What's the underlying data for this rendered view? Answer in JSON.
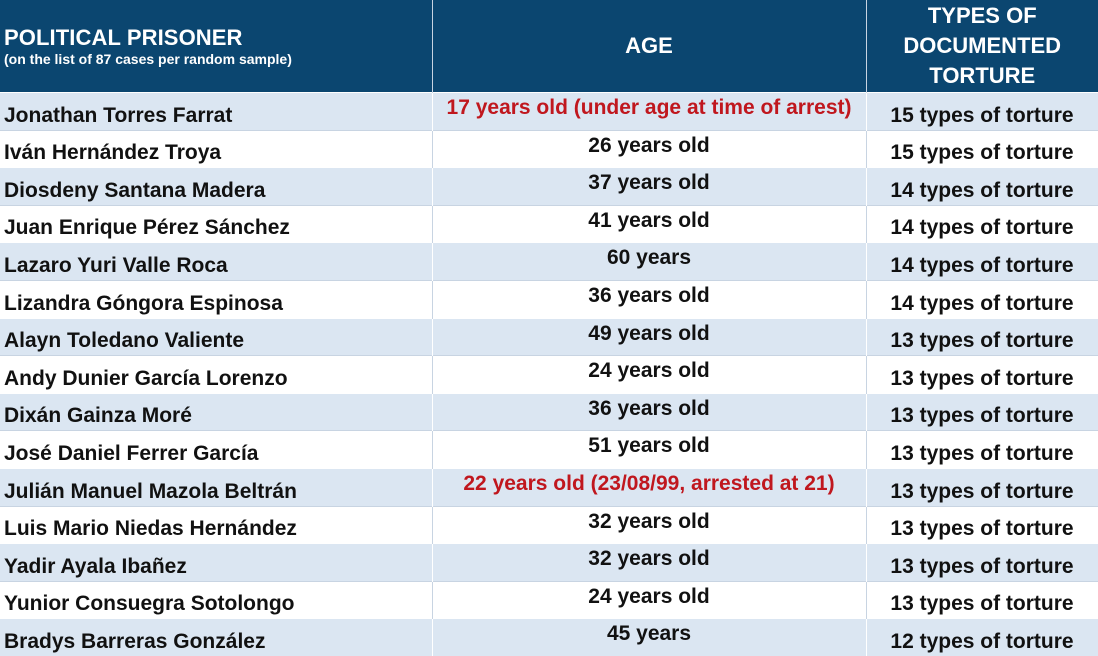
{
  "header": {
    "col1_title": "POLITICAL PRISONER",
    "col1_subtitle": "(on the list of 87 cases per random sample)",
    "col2_title": "AGE",
    "col3_line1": "TYPES OF",
    "col3_line2": "DOCUMENTED",
    "col3_line3": "TORTURE"
  },
  "highlight_color": "#c0171e",
  "header_color": "#0b4670",
  "rows": [
    {
      "name": "Jonathan Torres Farrat",
      "age": "17 years old (under age at time of arrest)",
      "types": "15 types of torture",
      "highlight": true
    },
    {
      "name": "Iván Hernández Troya",
      "age": "26 years old",
      "types": "15 types of torture",
      "highlight": false
    },
    {
      "name": "Diosdeny Santana Madera",
      "age": "37 years old",
      "types": "14 types of torture",
      "highlight": false
    },
    {
      "name": "Juan Enrique Pérez Sánchez",
      "age": "41 years old",
      "types": "14 types of torture",
      "highlight": false
    },
    {
      "name": "Lazaro Yuri Valle Roca",
      "age": "60 years",
      "types": "14 types of torture",
      "highlight": false
    },
    {
      "name": "Lizandra Góngora Espinosa",
      "age": "36 years old",
      "types": "14 types of torture",
      "highlight": false
    },
    {
      "name": "Alayn Toledano Valiente",
      "age": "49 years old",
      "types": "13 types of torture",
      "highlight": false
    },
    {
      "name": "Andy Dunier García Lorenzo",
      "age": "24 years old",
      "types": "13 types of torture",
      "highlight": false
    },
    {
      "name": "Dixán Gainza Moré",
      "age": "36 years old",
      "types": "13 types of torture",
      "highlight": false
    },
    {
      "name": "José Daniel Ferrer García",
      "age": "51 years old",
      "types": "13 types of torture",
      "highlight": false
    },
    {
      "name": "Julián Manuel Mazola Beltrán",
      "age": "22 years old (23/08/99, arrested at 21)",
      "types": "13 types of torture",
      "highlight": true
    },
    {
      "name": "Luis Mario Niedas Hernández",
      "age": "32 years old",
      "types": "13 types of torture",
      "highlight": false
    },
    {
      "name": "Yadir Ayala Ibañez",
      "age": "32 years old",
      "types": "13 types of torture",
      "highlight": false
    },
    {
      "name": "Yunior Consuegra Sotolongo",
      "age": "24 years old",
      "types": "13 types of torture",
      "highlight": false
    },
    {
      "name": "Bradys Barreras González",
      "age": "45 years",
      "types": "12 types of torture",
      "highlight": false
    }
  ]
}
